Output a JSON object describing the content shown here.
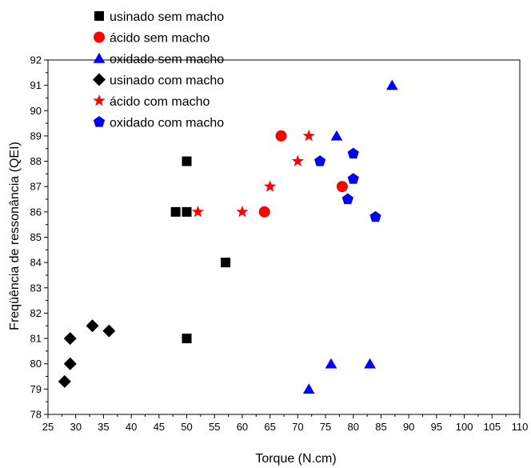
{
  "chart_data": {
    "type": "scatter",
    "title": "",
    "xlabel": "Torque (N.cm)",
    "ylabel": "Freqüência de ressonância (QEI)",
    "xlim": [
      25,
      110
    ],
    "ylim": [
      78,
      92
    ],
    "xticks": [
      25,
      30,
      35,
      40,
      45,
      50,
      55,
      60,
      65,
      70,
      75,
      80,
      85,
      90,
      95,
      100,
      105,
      110
    ],
    "yticks": [
      78,
      79,
      80,
      81,
      82,
      83,
      84,
      85,
      86,
      87,
      88,
      89,
      90,
      91,
      92
    ],
    "grid": false,
    "legend_position": "top-left",
    "series": [
      {
        "name": "usinado sem macho",
        "marker": "square",
        "color": "#000000",
        "points": [
          [
            48,
            86
          ],
          [
            50,
            86
          ],
          [
            50,
            88
          ],
          [
            57,
            84
          ],
          [
            50,
            81
          ]
        ]
      },
      {
        "name": "ácido sem macho",
        "marker": "circle",
        "color": "#ff0000",
        "points": [
          [
            64,
            86
          ],
          [
            67,
            89
          ],
          [
            78,
            87
          ]
        ]
      },
      {
        "name": "oxidado sem macho",
        "marker": "triangle",
        "color": "#0000ff",
        "points": [
          [
            72,
            79
          ],
          [
            76,
            80
          ],
          [
            77,
            89
          ],
          [
            83,
            80
          ],
          [
            87,
            91
          ]
        ]
      },
      {
        "name": "usinado com macho",
        "marker": "diamond",
        "color": "#000000",
        "points": [
          [
            28,
            79.3
          ],
          [
            29,
            80
          ],
          [
            29,
            81
          ],
          [
            33,
            81.5
          ],
          [
            36,
            81.3
          ]
        ]
      },
      {
        "name": "ácido com macho",
        "marker": "star",
        "color": "#ff0000",
        "points": [
          [
            52,
            86
          ],
          [
            60,
            86
          ],
          [
            65,
            87
          ],
          [
            70,
            88
          ],
          [
            72,
            89
          ]
        ]
      },
      {
        "name": "oxidado com macho",
        "marker": "pentagon",
        "color": "#0000ff",
        "points": [
          [
            74,
            88
          ],
          [
            79,
            86.5
          ],
          [
            80,
            87.3
          ],
          [
            80,
            88.3
          ],
          [
            84,
            85.8
          ]
        ]
      }
    ]
  }
}
